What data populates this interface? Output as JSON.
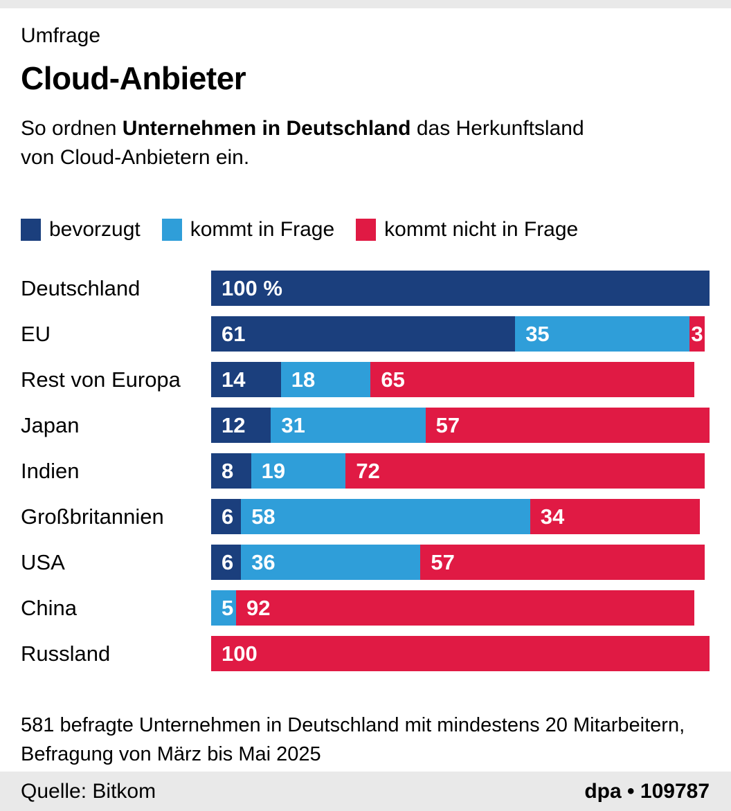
{
  "header": {
    "kicker": "Umfrage",
    "title": "Cloud-Anbieter",
    "description": {
      "pre": "So ordnen ",
      "bold": "Unternehmen in Deutschland",
      "line1_rest": " das Herkunftsland",
      "line2": "von Cloud-Anbietern ein."
    }
  },
  "colors": {
    "dark_blue": "#1b3f7d",
    "light_blue": "#2f9ed9",
    "red": "#e01a44",
    "band_gray": "#e9e9e9",
    "text": "#000000",
    "bar_value_text": "#ffffff"
  },
  "legend": [
    {
      "label": "bevorzugt",
      "color": "#1b3f7d"
    },
    {
      "label": "kommt in Frage",
      "color": "#2f9ed9"
    },
    {
      "label": "kommt nicht in Frage",
      "color": "#e01a44"
    }
  ],
  "chart_data": {
    "type": "bar",
    "stacked": true,
    "orientation": "horizontal",
    "unit": "%",
    "xlim": [
      0,
      100
    ],
    "grid": false,
    "legend_position": "top",
    "first_bar_value_label": "100 %",
    "categories": [
      "Deutschland",
      "EU",
      "Rest von Europa",
      "Japan",
      "Indien",
      "Großbritannien",
      "USA",
      "China",
      "Russland"
    ],
    "series": [
      {
        "name": "bevorzugt",
        "color": "#1b3f7d",
        "values": [
          100,
          61,
          14,
          12,
          8,
          6,
          6,
          0,
          0
        ]
      },
      {
        "name": "kommt in Frage",
        "color": "#2f9ed9",
        "values": [
          0,
          35,
          18,
          31,
          19,
          58,
          36,
          5,
          0
        ]
      },
      {
        "name": "kommt nicht in Frage",
        "color": "#e01a44",
        "values": [
          0,
          3,
          65,
          57,
          72,
          34,
          57,
          92,
          100
        ]
      }
    ]
  },
  "footnote": {
    "line1": "581 befragte Unternehmen in Deutschland mit mindestens 20 Mitarbeitern,",
    "line2": "Befragung von März bis Mai 2025"
  },
  "footer": {
    "source": "Quelle: Bitkom",
    "brand": "dpa",
    "separator": "•",
    "graphic_id": "109787"
  }
}
